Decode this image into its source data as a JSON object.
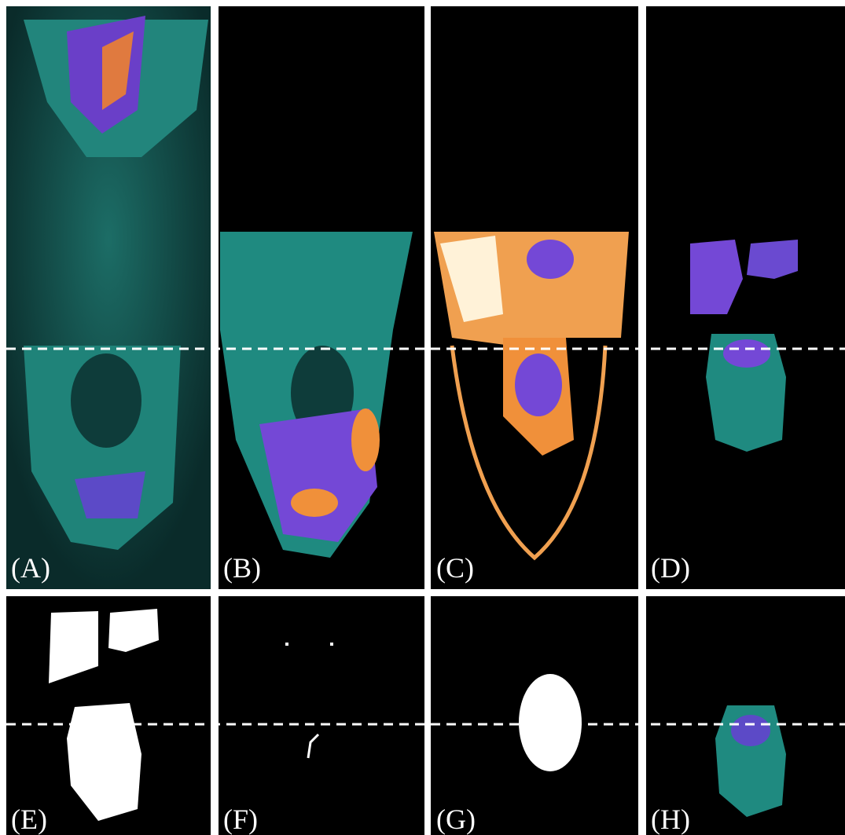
{
  "panels": [
    {
      "label": "(A)"
    },
    {
      "label": "(B)"
    },
    {
      "label": "(C)"
    },
    {
      "label": "(D)"
    },
    {
      "label": "(E)"
    },
    {
      "label": "(F)"
    },
    {
      "label": "(G)"
    },
    {
      "label": "(H)"
    }
  ]
}
